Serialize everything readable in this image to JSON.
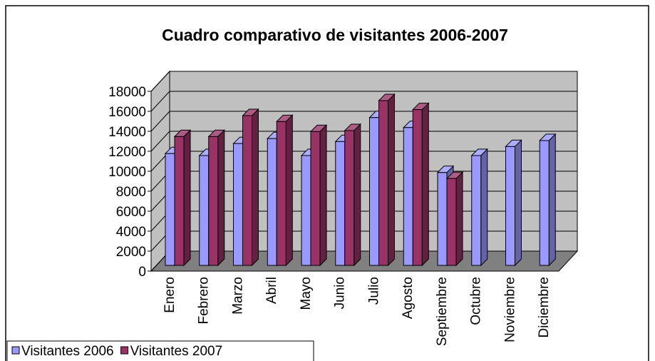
{
  "chart_data": {
    "type": "bar3d",
    "title": "Cuadro comparativo de visitantes 2006-2007",
    "categories": [
      "Enero",
      "Febrero",
      "Marzo",
      "Abril",
      "Mayo",
      "Junio",
      "Julio",
      "Agosto",
      "Septiembre",
      "Octubre",
      "Noviembre",
      "Diciembre"
    ],
    "series": [
      {
        "name": "Visitantes 2006",
        "color": "#9999ff",
        "values": [
          11200,
          11000,
          12200,
          12700,
          11000,
          12400,
          14800,
          13800,
          9300,
          11000,
          11900,
          12500
        ]
      },
      {
        "name": "Visitantes 2007",
        "color": "#993366",
        "values": [
          12900,
          12900,
          15000,
          14400,
          13400,
          13500,
          16500,
          15600,
          8700,
          null,
          null,
          null
        ]
      }
    ],
    "ylim": [
      0,
      18000
    ],
    "yticks": [
      0,
      2000,
      4000,
      6000,
      8000,
      10000,
      12000,
      14000,
      16000,
      18000
    ],
    "grid": true,
    "legend": "bottom-left"
  }
}
